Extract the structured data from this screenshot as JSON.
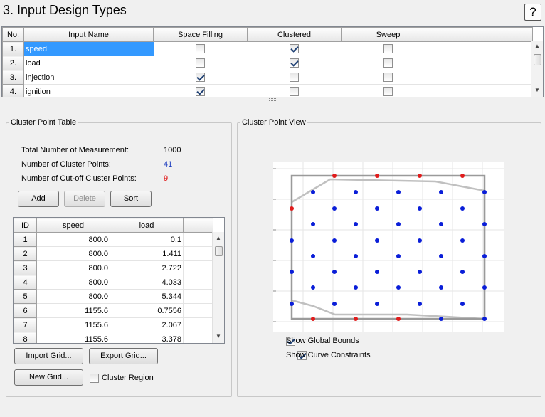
{
  "header": {
    "title": "3. Input Design Types",
    "help_label": "?"
  },
  "inputs_table": {
    "columns": [
      "No.",
      "Input Name",
      "Space Filling",
      "Clustered",
      "Sweep"
    ],
    "rows": [
      {
        "no": "1.",
        "name": "speed",
        "space_filling": false,
        "clustered": true,
        "sweep": false
      },
      {
        "no": "2.",
        "name": "load",
        "space_filling": false,
        "clustered": true,
        "sweep": false
      },
      {
        "no": "3.",
        "name": "injection",
        "space_filling": true,
        "clustered": false,
        "sweep": false
      },
      {
        "no": "4.",
        "name": "ignition",
        "space_filling": true,
        "clustered": false,
        "sweep": false
      }
    ]
  },
  "cluster_table_group": {
    "title": "Cluster Point Table",
    "stats": [
      {
        "label": "Total Number of Measurement:",
        "value": "1000",
        "color": "#000000"
      },
      {
        "label": "Number of Cluster Points:",
        "value": "41",
        "color": "#1f3fbf"
      },
      {
        "label": "Number of Cut-off Cluster Points:",
        "value": "9",
        "color": "#e01010"
      }
    ],
    "buttons": {
      "add": "Add",
      "delete": "Delete",
      "sort": "Sort"
    },
    "table": {
      "columns": [
        "ID",
        "speed",
        "load"
      ],
      "rows": [
        {
          "id": "1",
          "speed": "800.0",
          "load": "0.1"
        },
        {
          "id": "2",
          "speed": "800.0",
          "load": "1.411"
        },
        {
          "id": "3",
          "speed": "800.0",
          "load": "2.722"
        },
        {
          "id": "4",
          "speed": "800.0",
          "load": "4.033"
        },
        {
          "id": "5",
          "speed": "800.0",
          "load": "5.344"
        },
        {
          "id": "6",
          "speed": "1155.6",
          "load": "0.7556"
        },
        {
          "id": "7",
          "speed": "1155.6",
          "load": "2.067"
        },
        {
          "id": "8",
          "speed": "1155.6",
          "load": "3.378"
        }
      ]
    },
    "import_grid": "Import Grid...",
    "export_grid": "Export Grid...",
    "new_grid": "New Grid...",
    "cluster_region_label": "Cluster Region",
    "cluster_region_checked": false
  },
  "cluster_view_group": {
    "title": "Cluster Point View",
    "show_global_bounds_label": "Show Global Bounds",
    "show_global_bounds_checked": true,
    "show_curve_constraints_label": "Show Curve Constraints",
    "show_curve_constraints_checked": true,
    "colors": {
      "inside": "#0a1ed8",
      "cutoff": "#e01c1c",
      "bounds": "#9a9a9a",
      "constraint": "#c0c0c0"
    }
  }
}
